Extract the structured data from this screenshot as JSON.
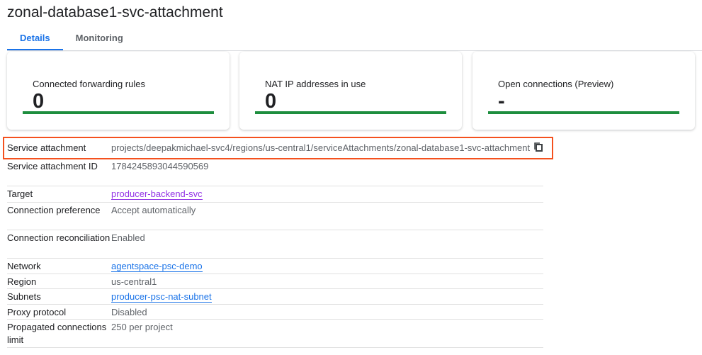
{
  "title": "zonal-database1-svc-attachment",
  "tabs": [
    {
      "label": "Details",
      "active": true
    },
    {
      "label": "Monitoring",
      "active": false
    }
  ],
  "cards": [
    {
      "label": "Connected forwarding rules",
      "value": "0"
    },
    {
      "label": "NAT IP addresses in use",
      "value": "0"
    },
    {
      "label": "Open connections (Preview)",
      "value": "-"
    }
  ],
  "accent": "#1a73e8",
  "bar_color": "#1e8e3e",
  "highlight_color": "#f4511e",
  "rows": [
    {
      "key": "Service attachment",
      "value": "projects/deepakmichael-svc4/regions/us-central1/serviceAttachments/zonal-database1-svc-attachment",
      "icon": "copy-icon"
    },
    {
      "key": "Service attachment ID",
      "value": "1784245893044590569"
    },
    {
      "key": "Target",
      "value": "producer-backend-svc",
      "link": true
    },
    {
      "key": "Connection preference",
      "value": "Accept automatically"
    },
    {
      "key": "Connection reconciliation",
      "value": "Enabled"
    },
    {
      "key": "Network",
      "value": "agentspace-psc-demo",
      "link": true
    },
    {
      "key": "Region",
      "value": "us-central1"
    },
    {
      "key": "Subnets",
      "value": "producer-psc-nat-subnet",
      "link": true
    },
    {
      "key": "Proxy protocol",
      "value": "Disabled"
    },
    {
      "key": "Propagated connections limit",
      "value": "250 per project"
    }
  ]
}
